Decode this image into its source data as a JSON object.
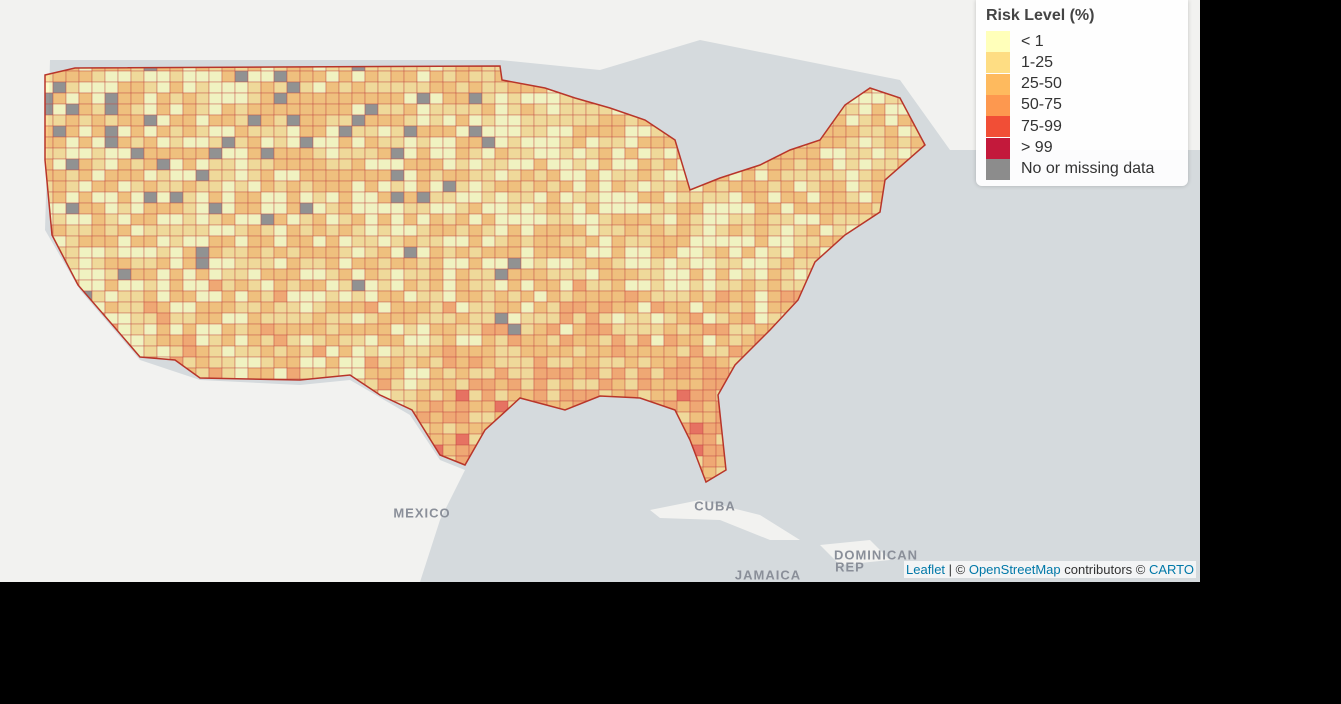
{
  "map": {
    "legend": {
      "title": "Risk Level (%)",
      "items": [
        {
          "label": "< 1",
          "color": "#ffffb2"
        },
        {
          "label": "1-25",
          "color": "#fed976"
        },
        {
          "label": "25-50",
          "color": "#feb24c"
        },
        {
          "label": "50-75",
          "color": "#fd8d3c"
        },
        {
          "label": "75-99",
          "color": "#f03b20"
        },
        {
          "label": "> 99",
          "color": "#bd0026"
        },
        {
          "label": "No or missing data",
          "color": "#808080"
        }
      ]
    },
    "places": [
      "MEXICO",
      "CUBA",
      "DOMINICAN",
      "REP",
      "JAMAICA"
    ],
    "attribution": [
      "Leaflet",
      " | © ",
      "OpenStreetMap",
      " contributors © ",
      "CARTO"
    ]
  }
}
